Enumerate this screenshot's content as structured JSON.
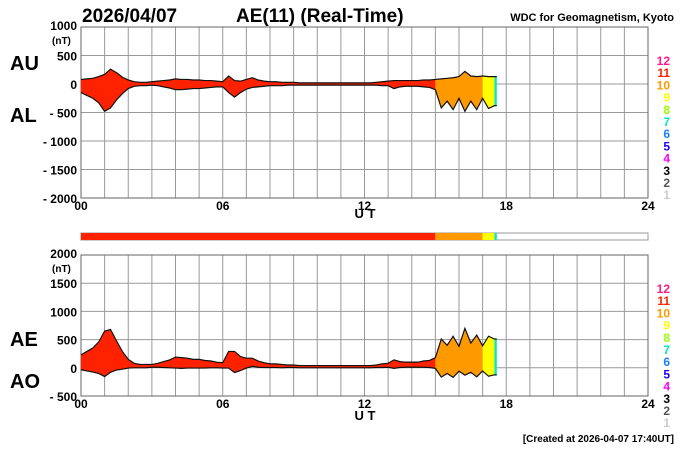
{
  "header": {
    "date": "2026/04/07",
    "title": "AE(11) (Real-Time)",
    "source": "WDC for Geomagnetism, Kyoto"
  },
  "footer": {
    "created": "[Created at 2026-04-07 17:40UT]"
  },
  "colors": {
    "12": "#ff1a8c",
    "11": "#ff2200",
    "10": "#ff9900",
    "9": "#ffff00",
    "8": "#99ff00",
    "7": "#00e8c8",
    "6": "#1e7fff",
    "5": "#2200ff",
    "4": "#ff00ff",
    "3": "#000000",
    "2": "#555555",
    "1": "#cccccc"
  },
  "legend_levels": [
    "12",
    "11",
    "10",
    "9",
    "8",
    "7",
    "6",
    "5",
    "4",
    "3",
    "2",
    "1"
  ],
  "chart_data": [
    {
      "type": "area",
      "title": "AU / AL",
      "series_labels": [
        "AU",
        "AL"
      ],
      "ylabel": "(nT)",
      "xlabel": "U T",
      "ylim": [
        -2000,
        1000
      ],
      "yticks": [
        "1000",
        "500",
        "0",
        "- 500",
        "- 1000",
        "- 1500",
        "- 2000"
      ],
      "xticks": [
        "00",
        "06",
        "12",
        "18",
        "24"
      ],
      "xlim": [
        0,
        24
      ],
      "grid": true
    },
    {
      "type": "area",
      "title": "AE / AO",
      "series_labels": [
        "AE",
        "AO"
      ],
      "ylabel": "(nT)",
      "xlabel": "U T",
      "ylim": [
        -500,
        2000
      ],
      "yticks": [
        "2000",
        "1500",
        "1000",
        "500",
        "0",
        "- 500"
      ],
      "xticks": [
        "00",
        "06",
        "12",
        "18",
        "24"
      ],
      "xlim": [
        0,
        24
      ],
      "grid": true
    }
  ],
  "series": {
    "step_hours": 0.25,
    "AU": [
      80,
      90,
      100,
      130,
      170,
      260,
      200,
      120,
      70,
      40,
      30,
      30,
      40,
      50,
      60,
      70,
      90,
      80,
      80,
      70,
      70,
      60,
      60,
      50,
      40,
      140,
      60,
      50,
      80,
      110,
      70,
      50,
      40,
      40,
      30,
      30,
      30,
      20,
      20,
      20,
      20,
      20,
      20,
      20,
      20,
      20,
      20,
      20,
      20,
      20,
      30,
      40,
      50,
      60,
      60,
      60,
      60,
      60,
      70,
      70,
      80,
      90,
      100,
      110,
      130,
      220,
      140,
      130,
      140,
      130,
      130
    ],
    "AL": [
      -150,
      -200,
      -250,
      -330,
      -480,
      -420,
      -280,
      -170,
      -80,
      -40,
      -30,
      -30,
      -20,
      -30,
      -50,
      -70,
      -100,
      -100,
      -90,
      -80,
      -80,
      -70,
      -60,
      -50,
      -50,
      -150,
      -230,
      -150,
      -90,
      -60,
      -50,
      -40,
      -30,
      -30,
      -30,
      -20,
      -20,
      -20,
      -20,
      -20,
      -20,
      -20,
      -20,
      -20,
      -20,
      -20,
      -20,
      -20,
      -20,
      -20,
      -20,
      -30,
      -30,
      -80,
      -50,
      -40,
      -40,
      -40,
      -50,
      -60,
      -100,
      -420,
      -300,
      -450,
      -250,
      -480,
      -300,
      -450,
      -250,
      -430,
      -380
    ]
  },
  "station_coverage": [
    {
      "start": 0,
      "end": 15,
      "level": "11"
    },
    {
      "start": 15,
      "end": 17,
      "level": "10"
    },
    {
      "start": 17,
      "end": 17.5,
      "level": "9"
    },
    {
      "start": 17.5,
      "end": 17.6,
      "level": "7"
    }
  ]
}
